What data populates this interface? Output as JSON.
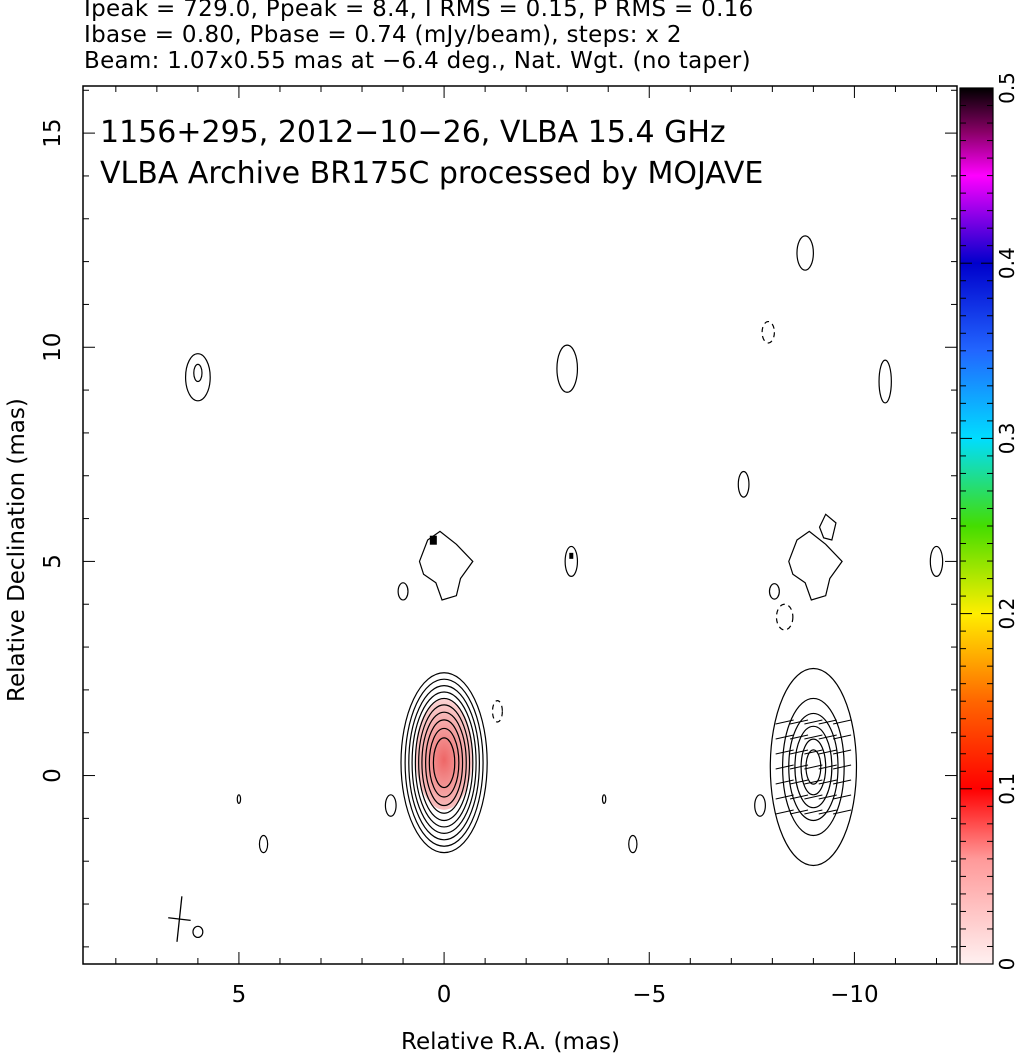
{
  "header": {
    "line1": "Ipeak = 729.0, Ppeak = 8.4, I RMS = 0.15, P RMS = 0.16",
    "line2": "Ibase = 0.80, Pbase = 0.74 (mJy/beam), steps: x 2",
    "line3": "Beam: 1.07x0.55 mas at −6.4 deg., Nat. Wgt. (no taper)"
  },
  "chart_data": {
    "type": "contour",
    "title_line1": "1156+295, 2012−10−26, VLBA 15.4 GHz",
    "title_line2": "VLBA Archive BR175C processed by MOJAVE",
    "xlabel": "Relative R.A. (mas)",
    "ylabel": "Relative Declination (mas)",
    "xlim": [
      8.8,
      -12.5
    ],
    "ylim": [
      -4.4,
      16.1
    ],
    "x_ticks": [
      5,
      0,
      -5,
      -10
    ],
    "x_tick_labels": [
      "5",
      "0",
      "−5",
      "−10"
    ],
    "y_ticks": [
      0,
      5,
      10,
      15
    ],
    "y_tick_labels": [
      "0",
      "5",
      "10",
      "15"
    ],
    "colorbar": {
      "range": [
        0,
        0.5
      ],
      "ticks": [
        0,
        0.1,
        0.2,
        0.3,
        0.4,
        0.5
      ],
      "tick_labels": [
        "0",
        "0.1",
        "0.2",
        "0.3",
        "0.4",
        "0.5"
      ]
    },
    "beam": {
      "major_mas": 1.07,
      "minor_mas": 0.55,
      "pa_deg": -6.4
    },
    "units": {
      "x": "mas",
      "y": "mas"
    },
    "panels": [
      {
        "name": "stokes_I_with_fractional_polarization",
        "x_offset": 0,
        "core": {
          "x": 0.0,
          "y": 0.3
        },
        "contour_ellipses": [
          {
            "rx": 1.05,
            "ry": 2.1
          },
          {
            "rx": 0.95,
            "ry": 1.95
          },
          {
            "rx": 0.86,
            "ry": 1.8
          },
          {
            "rx": 0.78,
            "ry": 1.65
          },
          {
            "rx": 0.7,
            "ry": 1.5
          },
          {
            "rx": 0.62,
            "ry": 1.35
          },
          {
            "rx": 0.54,
            "ry": 1.18
          },
          {
            "rx": 0.45,
            "ry": 1.0
          },
          {
            "rx": 0.36,
            "ry": 0.8
          },
          {
            "rx": 0.26,
            "ry": 0.58
          }
        ],
        "fractional_pol_region": {
          "x": 0.0,
          "y": 0.5,
          "rx": 0.7,
          "ry": 1.3
        }
      },
      {
        "name": "polarized_intensity_with_evpa",
        "x_offset": -9.0,
        "core": {
          "x": -9.0,
          "y": 0.2
        },
        "contour_ellipses": [
          {
            "rx": 1.05,
            "ry": 2.3
          },
          {
            "rx": 0.75,
            "ry": 1.6
          },
          {
            "rx": 0.6,
            "ry": 1.25
          },
          {
            "rx": 0.45,
            "ry": 0.95
          },
          {
            "rx": 0.3,
            "ry": 0.65
          },
          {
            "rx": 0.18,
            "ry": 0.4
          }
        ]
      }
    ],
    "minor_contours": [
      {
        "x": 6.0,
        "y": 9.3,
        "rx": 0.3,
        "ry": 0.55
      },
      {
        "x": 6.0,
        "y": 9.4,
        "rx": 0.1,
        "ry": 0.2
      },
      {
        "x": -3.0,
        "y": 9.5,
        "rx": 0.25,
        "ry": 0.55
      },
      {
        "x": -8.8,
        "y": 12.2,
        "rx": 0.2,
        "ry": 0.4
      },
      {
        "x": -10.75,
        "y": 9.2,
        "rx": 0.15,
        "ry": 0.5
      },
      {
        "x": -7.3,
        "y": 6.8,
        "rx": 0.13,
        "ry": 0.3
      },
      {
        "x": -3.1,
        "y": 5.0,
        "rx": 0.15,
        "ry": 0.35
      },
      {
        "x": -12.0,
        "y": 5.0,
        "rx": 0.15,
        "ry": 0.35
      },
      {
        "x": 1.0,
        "y": 4.3,
        "rx": 0.12,
        "ry": 0.2
      },
      {
        "x": -8.05,
        "y": 4.3,
        "rx": 0.12,
        "ry": 0.18
      },
      {
        "x": 1.3,
        "y": -0.7,
        "rx": 0.13,
        "ry": 0.25
      },
      {
        "x": -7.7,
        "y": -0.7,
        "rx": 0.13,
        "ry": 0.25
      },
      {
        "x": 4.4,
        "y": -1.6,
        "rx": 0.1,
        "ry": 0.2
      },
      {
        "x": -4.6,
        "y": -1.6,
        "rx": 0.1,
        "ry": 0.2
      },
      {
        "x": 5.0,
        "y": -0.55,
        "rx": 0.04,
        "ry": 0.1
      },
      {
        "x": -3.9,
        "y": -0.55,
        "rx": 0.04,
        "ry": 0.1
      },
      {
        "x": 6.0,
        "y": -3.65,
        "rx": 0.12,
        "ry": 0.13
      }
    ],
    "dashed_contours": [
      {
        "x": -1.3,
        "y": 1.5,
        "rx": 0.12,
        "ry": 0.25
      },
      {
        "x": -7.9,
        "y": 10.35,
        "rx": 0.15,
        "ry": 0.25
      },
      {
        "x": -8.3,
        "y": 3.7,
        "rx": 0.2,
        "ry": 0.3
      }
    ]
  }
}
